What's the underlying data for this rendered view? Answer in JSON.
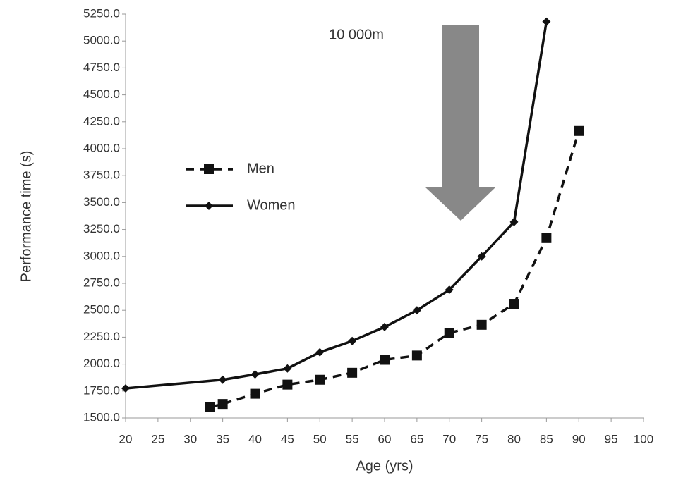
{
  "chart_data": {
    "type": "line",
    "annotation": "10 000m",
    "xlabel": "Age (yrs)",
    "ylabel": "Performance time (s)",
    "xlim": [
      20,
      100
    ],
    "xticks": [
      20,
      25,
      30,
      35,
      40,
      45,
      50,
      55,
      60,
      65,
      70,
      75,
      80,
      85,
      90,
      95,
      100
    ],
    "ylim": [
      1500,
      5250
    ],
    "yticks": [
      {
        "value": 1500,
        "label": "1500.0"
      },
      {
        "value": 1750,
        "label": "1750.0"
      },
      {
        "value": 2000,
        "label": "2000.0"
      },
      {
        "value": 2250,
        "label": "2250.0"
      },
      {
        "value": 2500,
        "label": "2500.0"
      },
      {
        "value": 2750,
        "label": "2750.0"
      },
      {
        "value": 3000,
        "label": "3000.0"
      },
      {
        "value": 3250,
        "label": "3250.0"
      },
      {
        "value": 3500,
        "label": "3500.0"
      },
      {
        "value": 3750,
        "label": "3750.0"
      },
      {
        "value": 4000,
        "label": "4000.0"
      },
      {
        "value": 4250,
        "label": "4250.0"
      },
      {
        "value": 4500,
        "label": "4500.0"
      },
      {
        "value": 4750,
        "label": "4750.0"
      },
      {
        "value": 5000,
        "label": "5000.0"
      },
      {
        "value": 5250,
        "label": "5250.0"
      }
    ],
    "grid": false,
    "legend": "center left",
    "series": [
      {
        "name": "Men",
        "color": "#111111",
        "dashed": true,
        "marker": "square",
        "x": [
          33,
          35,
          40,
          45,
          50,
          55,
          60,
          65,
          70,
          75,
          80,
          85,
          90
        ],
        "values": [
          1600,
          1630,
          1725,
          1810,
          1855,
          1920,
          2040,
          2080,
          2290,
          2365,
          2560,
          3170,
          4165
        ]
      },
      {
        "name": "Women",
        "color": "#111111",
        "dashed": false,
        "marker": "diamond",
        "x": [
          20,
          35,
          40,
          45,
          50,
          55,
          60,
          65,
          70,
          75,
          80,
          85
        ],
        "values": [
          1775,
          1855,
          1905,
          1960,
          2110,
          2215,
          2345,
          2500,
          2690,
          3000,
          3320,
          5180
        ]
      }
    ]
  }
}
